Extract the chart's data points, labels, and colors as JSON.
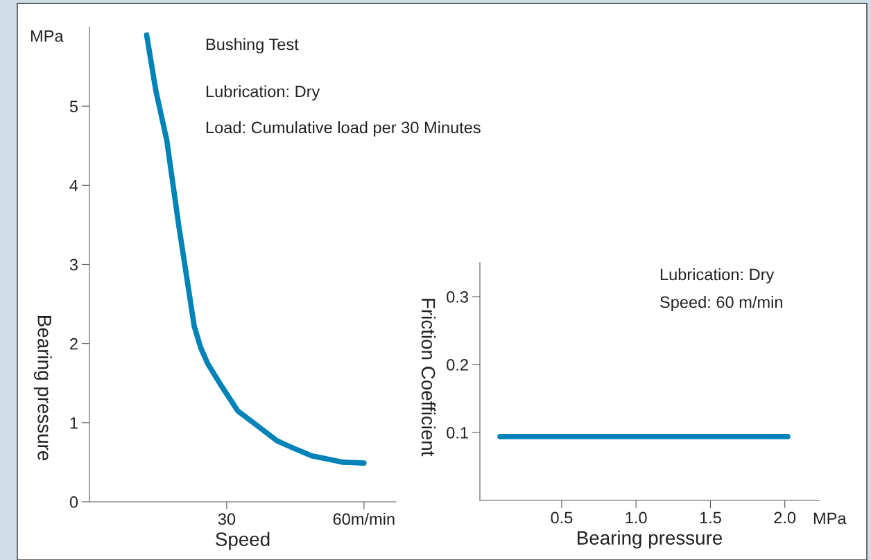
{
  "chart_data": [
    {
      "type": "line",
      "ylabel": "Bearing pressure",
      "xlabel": "Speed",
      "annotations": [
        "MPa",
        "Bushing Test",
        "Lubrication: Dry",
        "Load: Cumulative load per 30 Minutes"
      ],
      "series": [
        {
          "color": "#0083b8",
          "x": [
            12.5,
            14.5,
            16.9,
            19.5,
            22.9,
            24.3,
            25.9,
            29.0,
            32.4,
            36.5,
            41.0,
            44.5,
            48.6,
            52.0,
            55.4,
            60.0
          ],
          "values": [
            5.9,
            5.2,
            4.57,
            3.5,
            2.22,
            1.95,
            1.74,
            1.45,
            1.15,
            0.97,
            0.77,
            0.68,
            0.58,
            0.54,
            0.5,
            0.49
          ]
        }
      ],
      "xlim": [
        0,
        67
      ],
      "xticks": [
        30,
        {
          "value": 60,
          "label": "60m/min"
        }
      ],
      "ylim": [
        0,
        6
      ],
      "yticks": [
        0,
        1,
        2,
        3,
        4,
        5
      ],
      "grid": false,
      "legend": false
    },
    {
      "type": "line",
      "ylabel": "Friction Coefficient",
      "xlabel": "Bearing pressure",
      "annotations": [
        "MPa",
        "Lubrication: Dry",
        "Speed: 60 m/min"
      ],
      "series": [
        {
          "color": "#0083b8",
          "x": [
            0.085,
            2.02
          ],
          "values": [
            0.094,
            0.094
          ]
        }
      ],
      "xlim": [
        -0.05,
        2.23
      ],
      "xticks": [
        0.5,
        {
          "value": 1,
          "label": "1.0"
        },
        1.5,
        {
          "value": 2,
          "label": "2.0"
        }
      ],
      "ylim": [
        0,
        0.35
      ],
      "yticks": [
        0.1,
        0.2,
        0.3
      ],
      "grid": false,
      "legend": false
    }
  ]
}
